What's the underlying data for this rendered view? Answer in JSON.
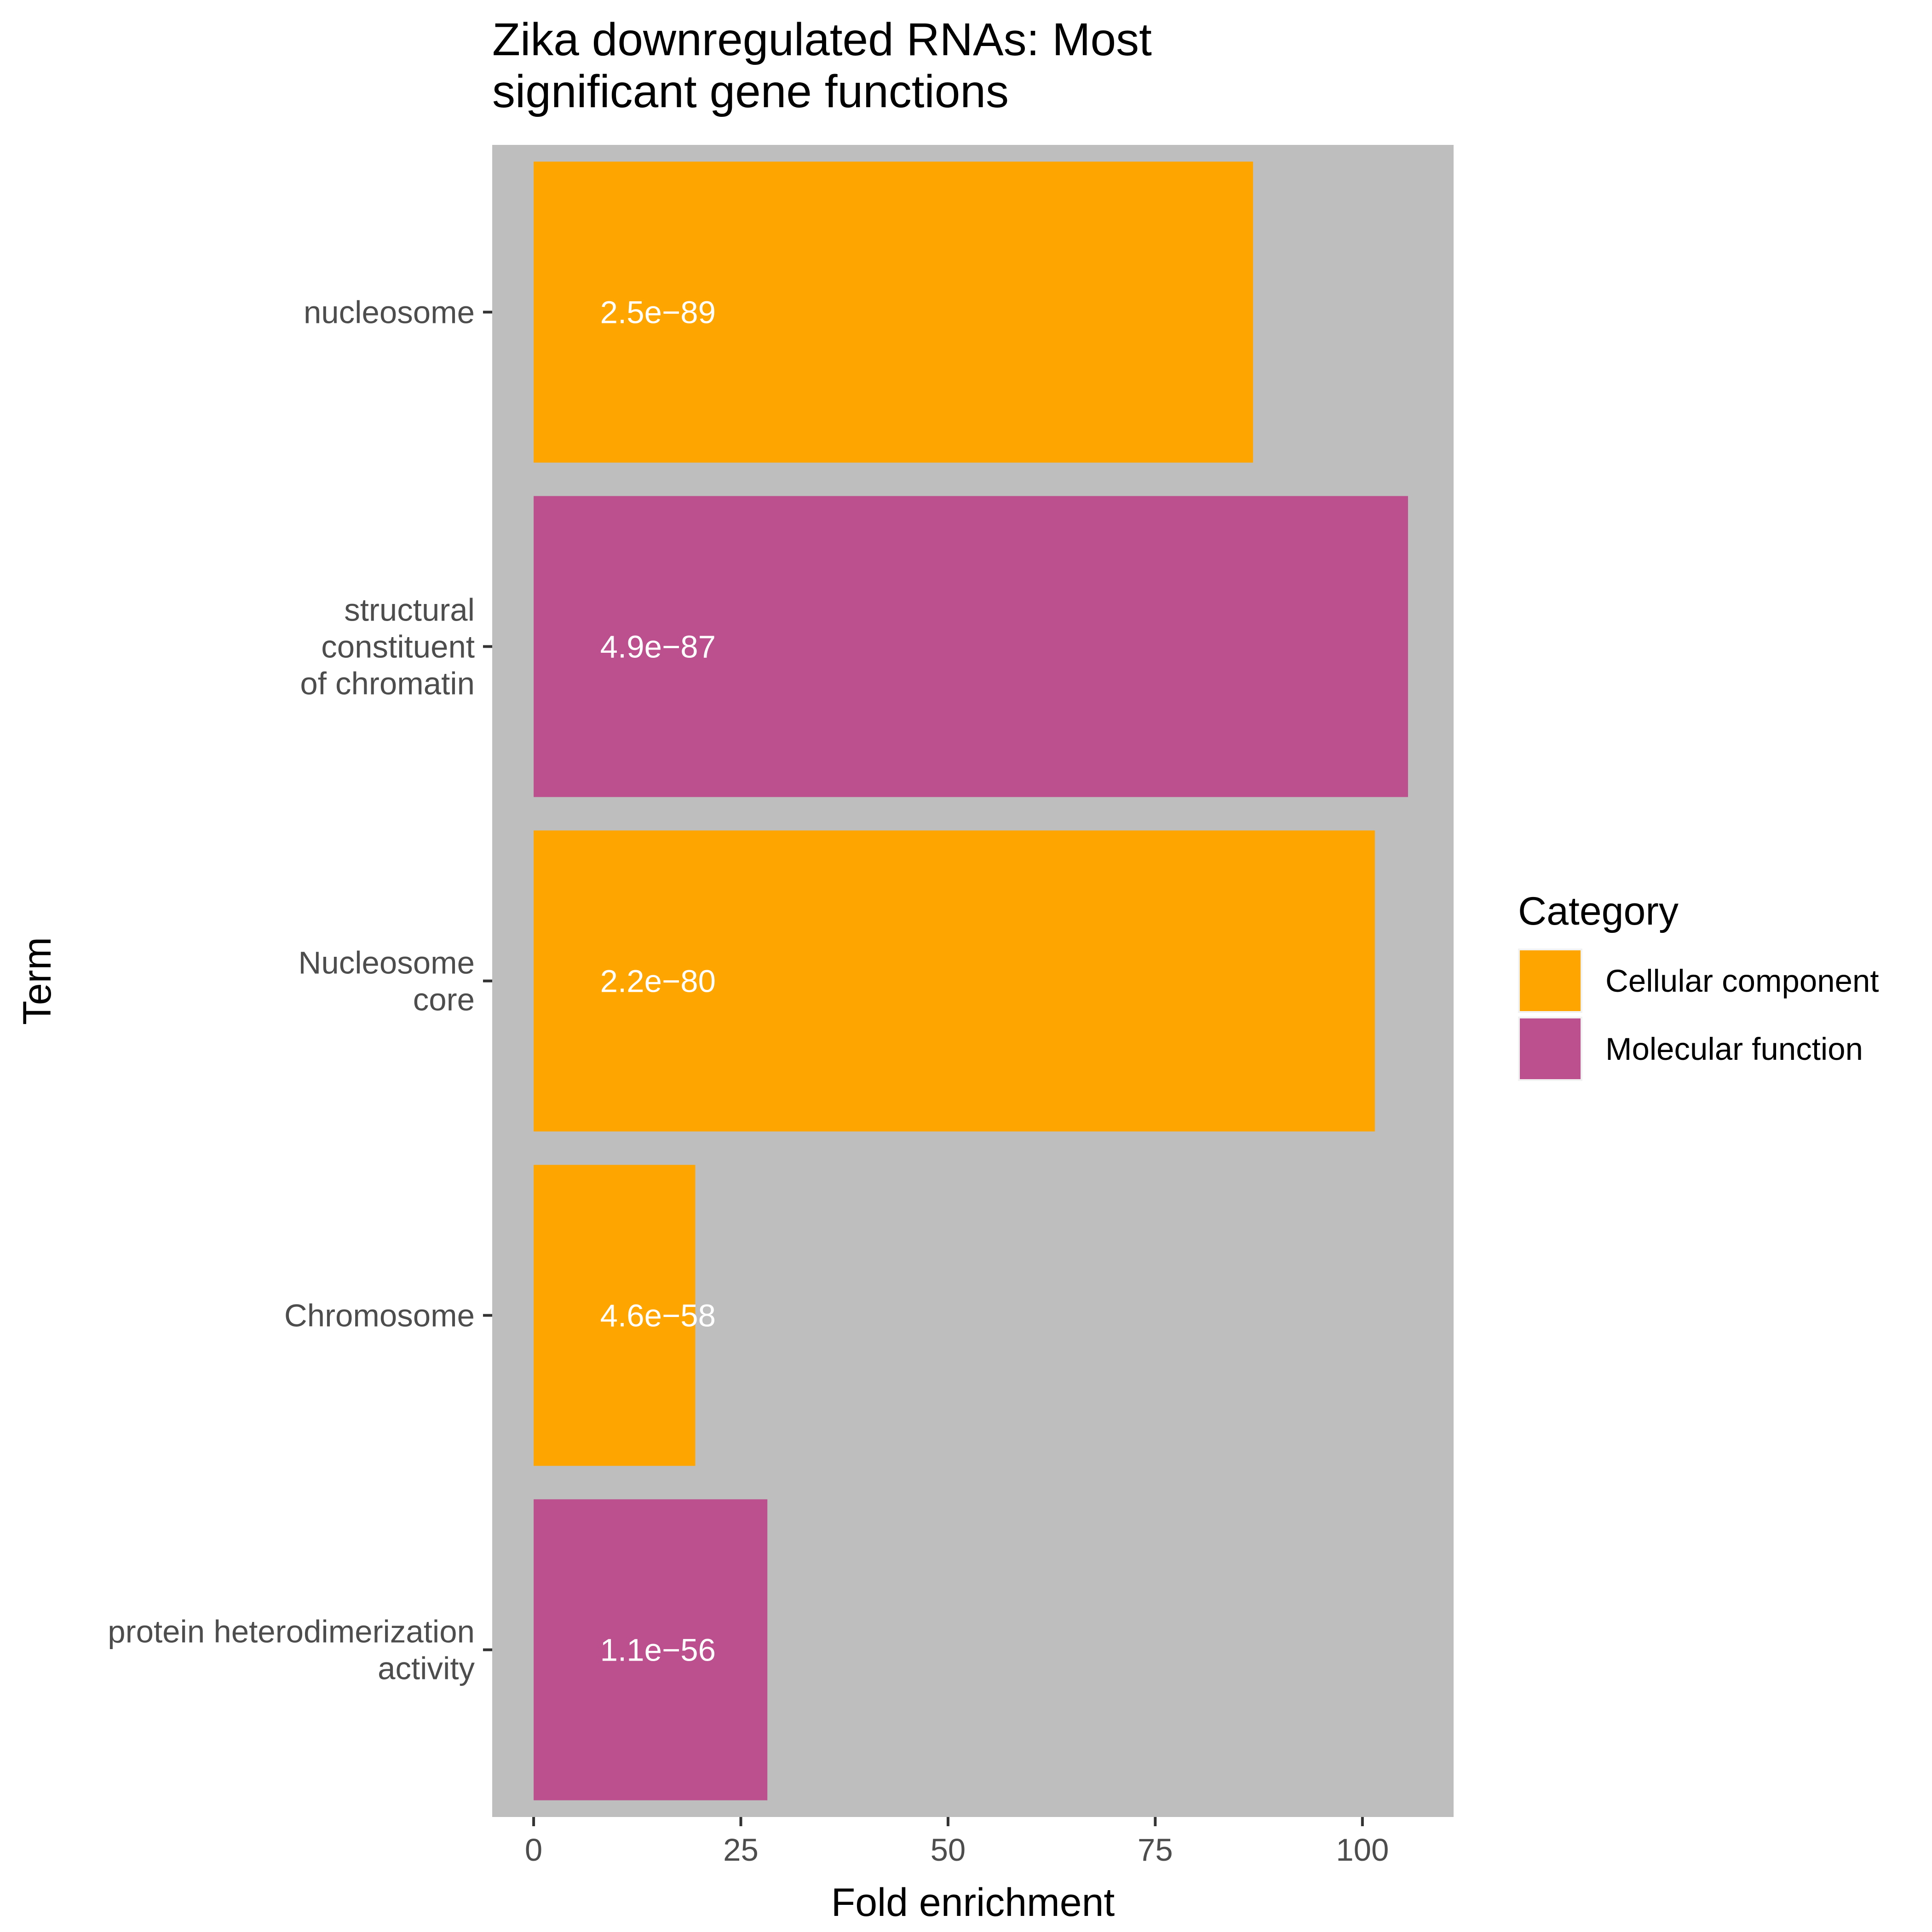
{
  "chart_data": {
    "type": "bar",
    "orientation": "horizontal",
    "title": "Zika downregulated RNAs: Most significant gene functions",
    "title_lines": [
      "Zika downregulated RNAs: Most",
      "significant gene functions"
    ],
    "xlabel": "Fold enrichment",
    "ylabel": "Term",
    "xlim": [
      -5,
      111
    ],
    "x_ticks": [
      0,
      25,
      50,
      75,
      100
    ],
    "x_tick_labels": [
      "0",
      "25",
      "50",
      "75",
      "100"
    ],
    "grid": false,
    "panel_background": "#bebebe",
    "categories": [
      "nucleosome",
      "structural constituent of chromatin",
      "Nucleosome core",
      "Chromosome",
      "protein heterodimerization activity"
    ],
    "category_label_lines": [
      [
        "nucleosome"
      ],
      [
        "structural",
        "constituent",
        "of chromatin"
      ],
      [
        "Nucleosome",
        "core"
      ],
      [
        "Chromosome"
      ],
      [
        "protein heterodimerization",
        "activity"
      ]
    ],
    "values": [
      86.8,
      105.5,
      101.5,
      19.5,
      28.2
    ],
    "bar_categories": [
      "Cellular component",
      "Molecular function",
      "Cellular component",
      "Cellular component",
      "Molecular function"
    ],
    "bar_labels": [
      "2.5e−89",
      "4.9e−87",
      "2.2e−80",
      "4.6e−58",
      "1.1e−56"
    ],
    "bar_label_x": 15,
    "legend": {
      "title": "Category",
      "placement": "right",
      "entries": [
        {
          "label": "Cellular component",
          "color": "#ffa500"
        },
        {
          "label": "Molecular function",
          "color": "#bc4f8e"
        }
      ]
    }
  }
}
